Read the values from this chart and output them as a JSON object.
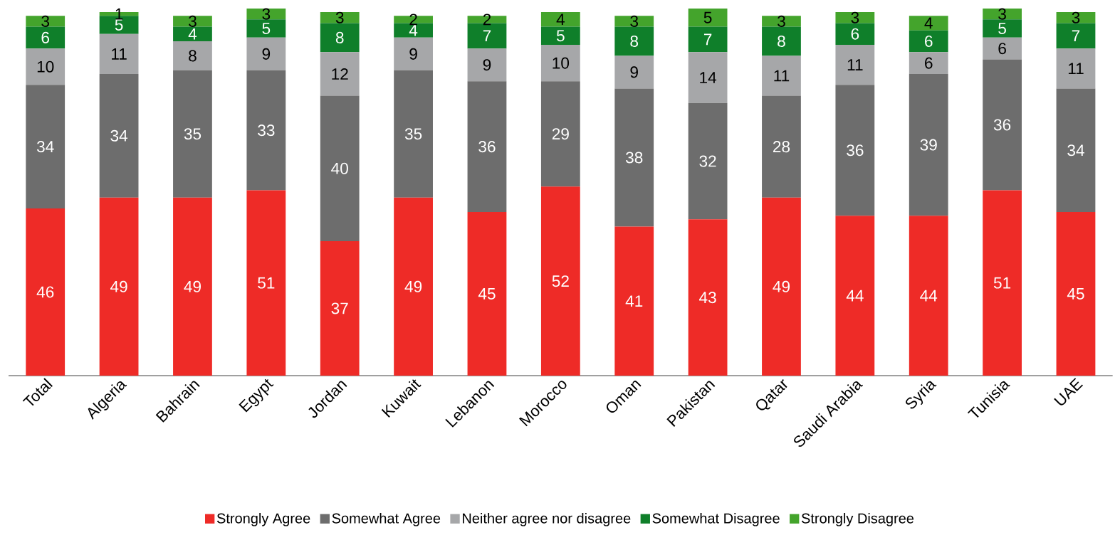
{
  "chart_data": {
    "type": "bar",
    "stacked": true,
    "data_labels": true,
    "legend": "bottom",
    "categories": [
      "Total",
      "Algeria",
      "Bahrain",
      "Egypt",
      "Jordan",
      "Kuwait",
      "Lebanon",
      "Morocco",
      "Oman",
      "Pakistan",
      "Qatar",
      "Saudi Arabia",
      "Syria",
      "Tunisia",
      "UAE"
    ],
    "series": [
      {
        "name": "Strongly Agree",
        "color": "#ee2b27",
        "values": [
          46,
          49,
          49,
          51,
          37,
          49,
          45,
          52,
          41,
          43,
          49,
          44,
          44,
          51,
          45
        ]
      },
      {
        "name": "Somewhat Agree",
        "color": "#6d6d6d",
        "values": [
          34,
          34,
          35,
          33,
          40,
          35,
          36,
          29,
          38,
          32,
          28,
          36,
          39,
          36,
          34
        ]
      },
      {
        "name": "Neither agree nor disagree",
        "color": "#a6a7a9",
        "values": [
          10,
          11,
          8,
          9,
          12,
          9,
          9,
          10,
          9,
          14,
          11,
          11,
          6,
          6,
          11
        ]
      },
      {
        "name": "Somewhat Disagree",
        "color": "#0f7f2a",
        "values": [
          6,
          5,
          4,
          5,
          8,
          4,
          7,
          5,
          8,
          7,
          8,
          6,
          6,
          5,
          7
        ]
      },
      {
        "name": "Strongly Disagree",
        "color": "#44a42c",
        "values": [
          3,
          1,
          3,
          3,
          3,
          2,
          2,
          4,
          3,
          5,
          3,
          3,
          4,
          3,
          3
        ]
      }
    ]
  }
}
